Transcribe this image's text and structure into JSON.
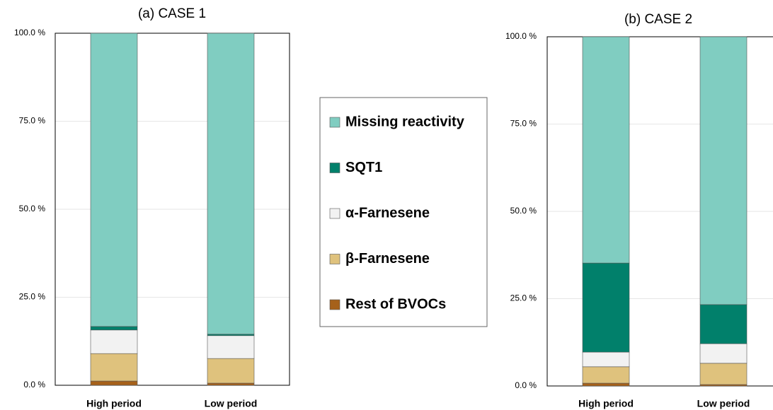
{
  "chart_data": [
    {
      "type": "stacked_bar",
      "title": "(a) CASE 1",
      "categories": [
        "High period",
        "Low period"
      ],
      "series": [
        {
          "name": "Rest of BVOCs",
          "color": "#a6611a",
          "values": [
            1.2,
            0.6
          ]
        },
        {
          "name": "β-Farnesene",
          "color": "#dfc27d",
          "values": [
            7.8,
            7.0
          ]
        },
        {
          "name": "α-Farnesene",
          "color": "#f2f2f2",
          "values": [
            6.7,
            6.5
          ]
        },
        {
          "name": "SQT1",
          "color": "#01806b",
          "values": [
            1.0,
            0.4
          ]
        },
        {
          "name": "Missing reactivity",
          "color": "#80cdc1",
          "values": [
            83.3,
            85.5
          ]
        }
      ],
      "ylim": [
        0,
        100
      ],
      "yticks": [
        {
          "value": 0,
          "label": "0.0 %"
        },
        {
          "value": 25,
          "label": "25.0 %"
        },
        {
          "value": 50,
          "label": "50.0 %"
        },
        {
          "value": 75,
          "label": "75.0 %"
        },
        {
          "value": 100,
          "label": "100.0 %"
        }
      ],
      "grid": true
    },
    {
      "type": "stacked_bar",
      "title": "(b) CASE 2",
      "categories": [
        "High period",
        "Low period"
      ],
      "series": [
        {
          "color": "#a6611a",
          "values": [
            0.8,
            0.4
          ]
        },
        {
          "color": "#dfc27d",
          "values": [
            4.7,
            6.1
          ]
        },
        {
          "color": "#f2f2f2",
          "values": [
            4.2,
            5.6
          ]
        },
        {
          "color": "#01806b",
          "values": [
            25.5,
            11.2
          ]
        },
        {
          "color": "#80cdc1",
          "values": [
            64.8,
            76.7
          ]
        }
      ],
      "ylim": [
        0,
        100
      ],
      "yticks": [
        {
          "value": 0,
          "label": "0.0 %"
        },
        {
          "value": 25,
          "label": "25.0 %"
        },
        {
          "value": 50,
          "label": "50.0 %"
        },
        {
          "value": 75,
          "label": "75.0 %"
        },
        {
          "value": 100,
          "label": "100.0 %"
        }
      ],
      "grid": true
    }
  ]
}
